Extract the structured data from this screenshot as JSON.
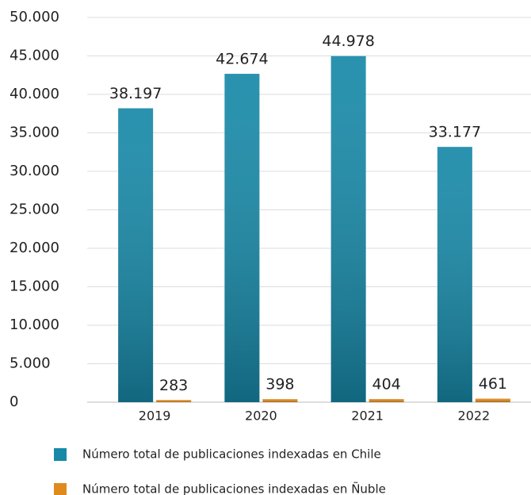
{
  "chart_data": {
    "type": "bar",
    "categories": [
      "2019",
      "2020",
      "2021",
      "2022"
    ],
    "series": [
      {
        "name": "Número total de publicaciones indexadas en Chile",
        "color": "#1789a8",
        "values": [
          38197,
          42674,
          44978,
          33177
        ],
        "value_labels": [
          "38.197",
          "42.674",
          "44.978",
          "33.177"
        ]
      },
      {
        "name": "Número total de publicaciones indexadas en Ñuble",
        "color": "#e08a1e",
        "values": [
          283,
          398,
          404,
          461
        ]
      }
    ],
    "ylim": [
      0,
      50000
    ],
    "yticks": [
      0,
      {
        "value": 5000,
        "label": "5.000"
      },
      {
        "value": 10000,
        "label": "10.000"
      },
      {
        "value": 15000,
        "label": "15.000"
      },
      {
        "value": 20000,
        "label": "20.000"
      },
      {
        "value": 25000,
        "label": "25.000"
      },
      {
        "value": 30000,
        "label": "30.000"
      },
      {
        "value": 35000,
        "label": "35.000"
      },
      {
        "value": 40000,
        "label": "40.000"
      },
      {
        "value": 45000,
        "label": "45.000"
      },
      {
        "value": 50000,
        "label": "50.000"
      }
    ],
    "grid": true
  }
}
